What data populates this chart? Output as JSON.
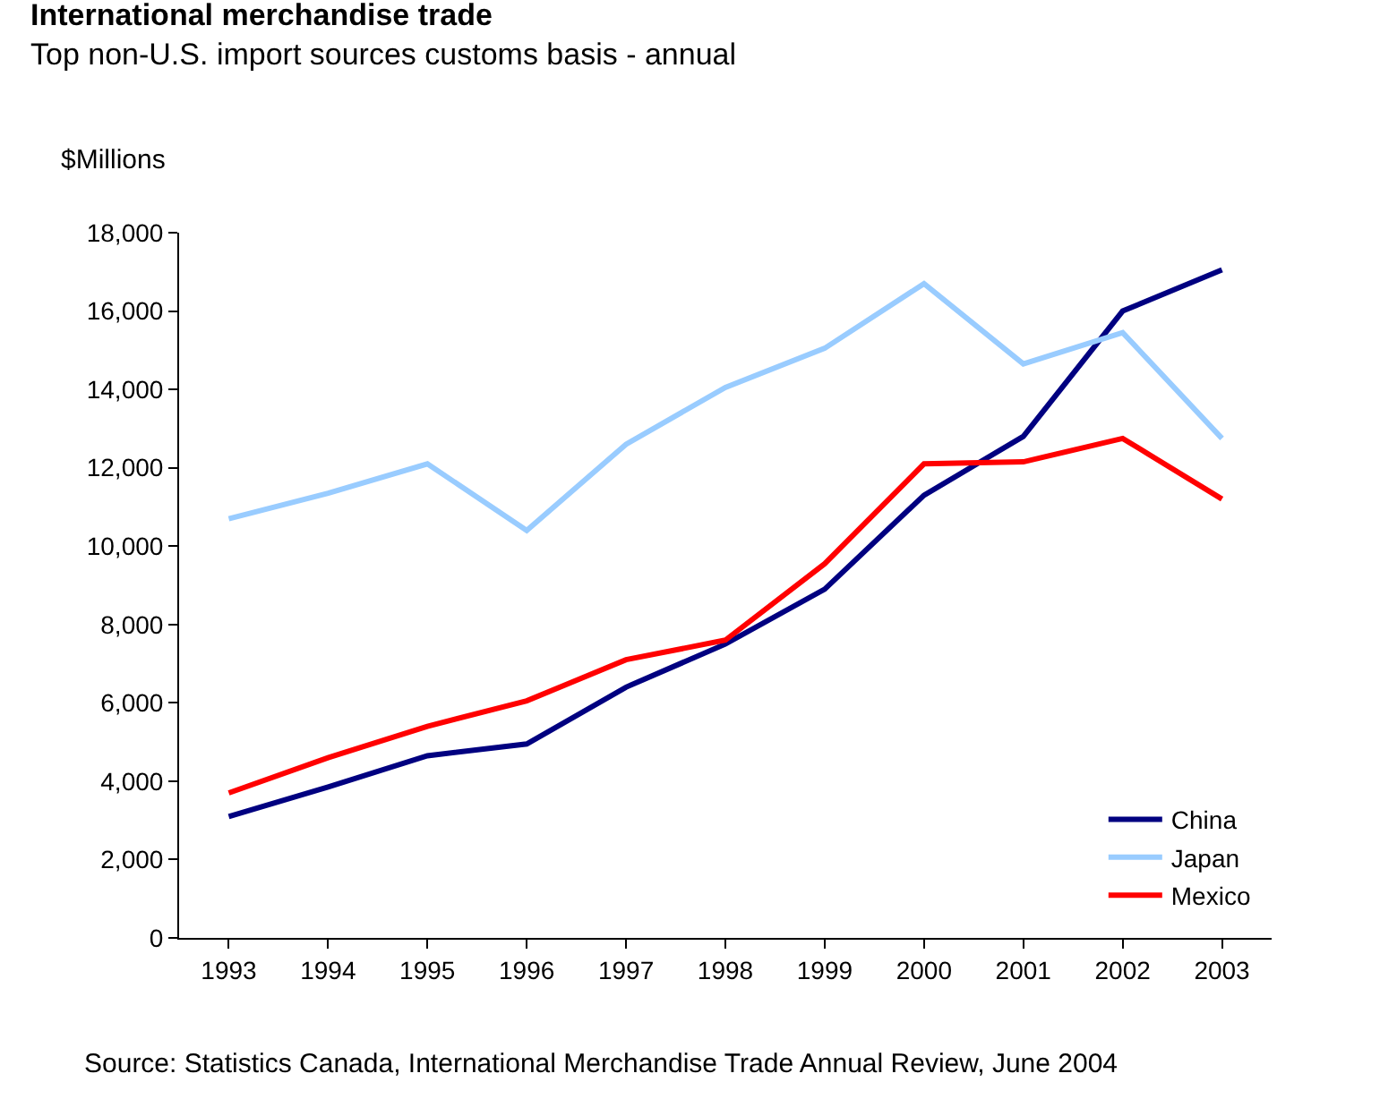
{
  "chart_data": {
    "type": "line",
    "title": "International merchandise trade",
    "subtitle": "Top non-U.S. import sources customs basis - annual",
    "ylabel": "$Millions",
    "x": [
      1993,
      1994,
      1995,
      1996,
      1997,
      1998,
      1999,
      2000,
      2001,
      2002,
      2003
    ],
    "xlim": [
      1992.5,
      2003.5
    ],
    "xticks": [
      1993,
      1994,
      1995,
      1996,
      1997,
      1998,
      1999,
      2000,
      2001,
      2002,
      2003
    ],
    "ylim": [
      0,
      18000
    ],
    "yticks": [
      {
        "value": 0,
        "label": "0"
      },
      {
        "value": 2000,
        "label": "2,000"
      },
      {
        "value": 4000,
        "label": "4,000"
      },
      {
        "value": 6000,
        "label": "6,000"
      },
      {
        "value": 8000,
        "label": "8,000"
      },
      {
        "value": 10000,
        "label": "10,000"
      },
      {
        "value": 12000,
        "label": "12,000"
      },
      {
        "value": 14000,
        "label": "14,000"
      },
      {
        "value": 16000,
        "label": "16,000"
      },
      {
        "value": 18000,
        "label": "18,000"
      }
    ],
    "series": [
      {
        "name": "China",
        "color": "#000080",
        "values": [
          3100,
          3850,
          4650,
          4950,
          6400,
          7500,
          8900,
          11300,
          12800,
          16000,
          17050
        ]
      },
      {
        "name": "Japan",
        "color": "#99ccff",
        "values": [
          10700,
          11350,
          12100,
          10400,
          12600,
          14050,
          15050,
          16700,
          14650,
          15450,
          12750
        ]
      },
      {
        "name": "Mexico",
        "color": "#ff0000",
        "values": [
          3700,
          4600,
          5400,
          6050,
          7100,
          7600,
          9550,
          12100,
          12150,
          12750,
          11200
        ]
      }
    ],
    "legend": "bottom right",
    "marker": "none",
    "line_style": "solid",
    "annotations": [
      "Source: Statistics Canada, International Merchandise Trade Annual Review, June 2004"
    ]
  }
}
